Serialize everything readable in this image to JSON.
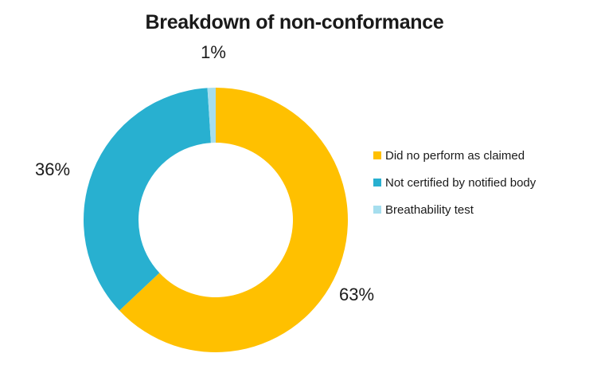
{
  "chart_data": {
    "type": "pie",
    "subtype": "donut",
    "title": "Breakdown of non-conformance",
    "categories": [
      "Did no perform as claimed",
      "Not certified by notified body",
      "Breathability test"
    ],
    "values": [
      63,
      36,
      1
    ],
    "data_labels": [
      "63%",
      "36%",
      "1%"
    ],
    "colors": [
      "#FFC000",
      "#28B0D0",
      "#A6DEEE"
    ],
    "unit": "percent",
    "start_angle_deg": 0,
    "direction": "clockwise",
    "hole_ratio": 0.58,
    "legend_position": "right",
    "background": "#FFFFFF",
    "text_color": "#1A1A1A"
  },
  "legend": {
    "items": [
      {
        "label": "Did no perform as claimed",
        "color": "#FFC000"
      },
      {
        "label": "Not certified by notified body",
        "color": "#28B0D0"
      },
      {
        "label": "Breathability test",
        "color": "#A6DEEE"
      }
    ]
  }
}
